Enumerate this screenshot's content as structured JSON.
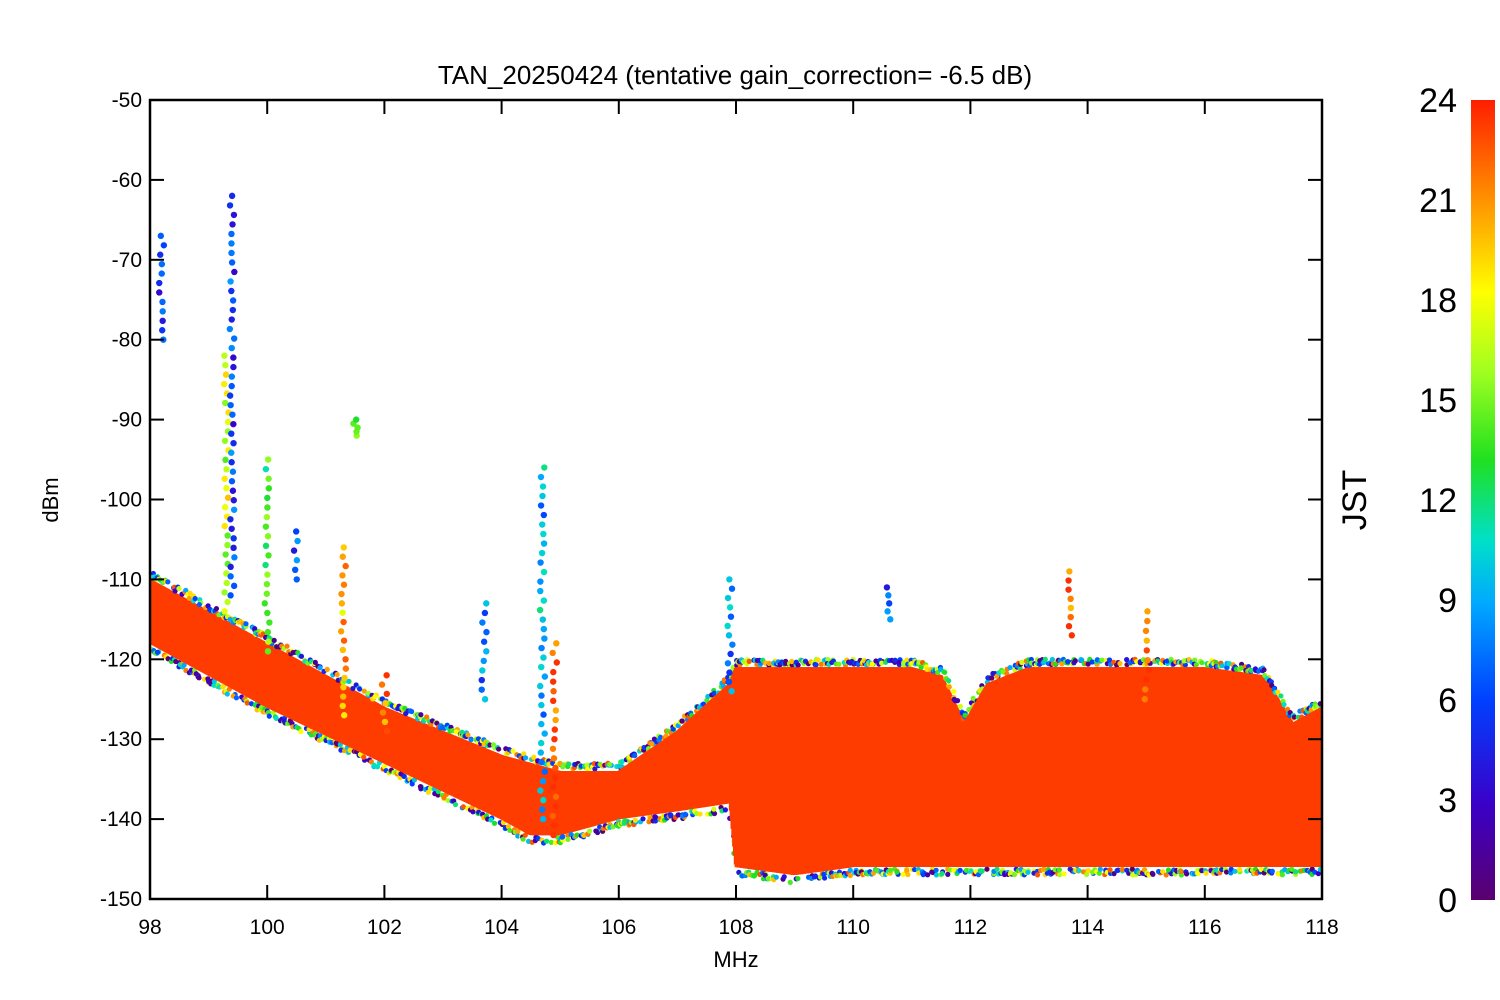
{
  "chart_data": {
    "type": "scatter",
    "title": "TAN_20250424 (tentative gain_correction= -6.5 dB)",
    "xlabel": "MHz",
    "ylabel": "dBm",
    "xlim": [
      98,
      118
    ],
    "ylim": [
      -150,
      -50
    ],
    "x_ticks": [
      "98",
      "100",
      "102",
      "104",
      "106",
      "108",
      "110",
      "112",
      "114",
      "116",
      "118"
    ],
    "y_ticks": [
      "-50",
      "-60",
      "-70",
      "-80",
      "-90",
      "-100",
      "-110",
      "-120",
      "-130",
      "-140",
      "-150"
    ],
    "colorbar": {
      "label": "JST",
      "range": [
        0,
        24
      ],
      "ticks": [
        "0",
        "3",
        "6",
        "9",
        "12",
        "15",
        "18",
        "21",
        "24"
      ],
      "colormap": "rainbow (purple → blue → cyan → green → yellow → orange → red)"
    },
    "noise_floor": {
      "x": [
        98,
        100,
        102,
        104,
        104.5,
        105,
        106,
        107,
        107.9,
        108,
        109,
        110,
        111,
        111.5,
        111.9,
        112.3,
        113,
        114,
        115,
        116,
        117,
        117.5,
        118
      ],
      "upper": [
        -110,
        -118,
        -126,
        -132,
        -133,
        -134,
        -134,
        -129,
        -123,
        -121,
        -121,
        -121,
        -121,
        -122,
        -128,
        -123,
        -121,
        -121,
        -121,
        -121,
        -122,
        -128,
        -126
      ],
      "lower": [
        -118,
        -126,
        -133,
        -140,
        -142,
        -142,
        -140,
        -139,
        -138,
        -146,
        -147,
        -146,
        -146,
        -146,
        -146,
        -146,
        -146,
        -146,
        -146,
        -146,
        -146,
        -146,
        -146
      ]
    },
    "series": [
      {
        "x": 98.2,
        "ymax": -67,
        "ymin": -80,
        "hour": 5
      },
      {
        "x": 99.3,
        "ymax": -82,
        "ymin": -114,
        "hour": 17
      },
      {
        "x": 99.4,
        "ymax": -62,
        "ymin": -112,
        "hour": 6
      },
      {
        "x": 100.0,
        "ymax": -95,
        "ymin": -119,
        "hour": 14
      },
      {
        "x": 100.5,
        "ymax": -104,
        "ymin": -110,
        "hour": 6
      },
      {
        "x": 101.3,
        "ymax": -106,
        "ymin": -127,
        "hour": 20
      },
      {
        "x": 101.5,
        "ymax": -90,
        "ymin": -92,
        "hour": 14
      },
      {
        "x": 102.0,
        "ymax": -122,
        "ymin": -129,
        "hour": 22
      },
      {
        "x": 103.7,
        "ymax": -113,
        "ymin": -125,
        "hour": 8
      },
      {
        "x": 104.7,
        "ymax": -96,
        "ymin": -140,
        "hour": 9
      },
      {
        "x": 104.9,
        "ymax": -118,
        "ymin": -142,
        "hour": 23
      },
      {
        "x": 107.9,
        "ymax": -110,
        "ymin": -124,
        "hour": 8
      },
      {
        "x": 110.6,
        "ymax": -111,
        "ymin": -115,
        "hour": 6
      },
      {
        "x": 113.7,
        "ymax": -109,
        "ymin": -117,
        "hour": 23
      },
      {
        "x": 115.0,
        "ymax": -114,
        "ymin": -125,
        "hour": 23
      }
    ]
  }
}
